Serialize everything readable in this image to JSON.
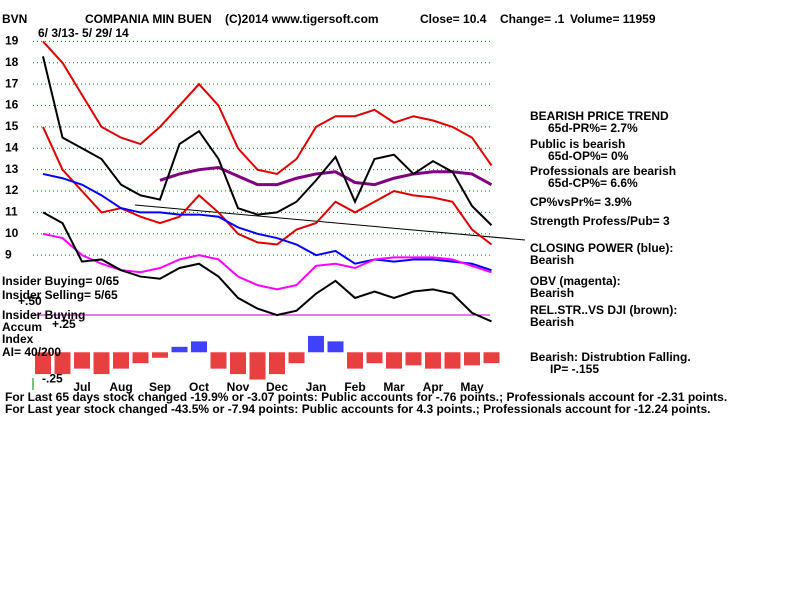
{
  "chart_data": [
    {
      "type": "line",
      "header": [
        "BVN",
        "COMPANIA MIN BUEN",
        "(C)2014 www.tigersoft.com",
        "Close= 10.4",
        "Change= .1",
        "Volume= 11959"
      ],
      "subtitle": "6/ 3/13- 5/ 29/ 14",
      "categories": [
        null,
        null,
        "Jul",
        null,
        "Aug",
        null,
        "Sep",
        null,
        "Oct",
        null,
        "Nov",
        null,
        "Dec",
        null,
        "Jan",
        null,
        "Feb",
        null,
        "Mar",
        null,
        "Apr",
        null,
        "May",
        null
      ],
      "ylim": [
        5.5,
        19.3
      ],
      "yticks": [
        9,
        10,
        11,
        12,
        13,
        14,
        15,
        16,
        17,
        18,
        19
      ],
      "grid": true,
      "series": [
        {
          "color": "#e00000",
          "values": [
            19,
            18,
            16.5,
            15,
            14.5,
            14.2,
            15,
            16,
            17,
            16,
            14,
            13,
            12.8,
            13.5,
            15,
            15.5,
            15.5,
            15.8,
            15.2,
            15.5,
            15.3,
            15,
            14.5,
            13.2
          ]
        },
        {
          "color": "#e00000",
          "values": [
            15,
            13,
            12,
            11,
            11.2,
            10.8,
            10.5,
            10.8,
            11.8,
            11,
            10,
            9.6,
            9.5,
            10.2,
            10.5,
            11.5,
            11,
            11.5,
            12,
            11.8,
            11.7,
            11.5,
            10.2,
            9.5
          ]
        },
        {
          "color": "#800080",
          "values": [
            null,
            null,
            null,
            null,
            null,
            null,
            12.5,
            12.8,
            13,
            13.1,
            12.7,
            12.3,
            12.3,
            12.6,
            12.8,
            12.9,
            12.4,
            12.3,
            12.6,
            12.8,
            12.9,
            12.9,
            12.8,
            12.3
          ]
        },
        {
          "color": "#000000",
          "values": [
            18.3,
            14.5,
            14.0,
            13.5,
            12.3,
            11.8,
            11.6,
            14.2,
            14.8,
            13.5,
            11.2,
            10.9,
            11.0,
            11.5,
            12.5,
            13.6,
            11.5,
            13.5,
            13.7,
            12.8,
            13.4,
            12.9,
            11.3,
            10.4
          ]
        },
        {
          "color": "#0000ff",
          "values": [
            12.8,
            12.6,
            12.3,
            11.8,
            11.2,
            11.0,
            11.0,
            10.9,
            10.9,
            10.8,
            10.3,
            10.0,
            9.8,
            9.5,
            9.0,
            9.2,
            8.6,
            8.8,
            8.7,
            8.8,
            8.8,
            8.7,
            8.6,
            8.3
          ]
        },
        {
          "color": "#ff00ff",
          "values": [
            10.0,
            9.8,
            9.0,
            8.6,
            8.3,
            8.2,
            8.4,
            8.8,
            9.0,
            8.8,
            8.0,
            7.6,
            7.4,
            7.6,
            8.5,
            8.6,
            8.4,
            8.8,
            8.9,
            8.9,
            8.9,
            8.8,
            8.5,
            8.2
          ]
        },
        {
          "color": "#000000",
          "values": [
            11.0,
            10.5,
            8.7,
            8.8,
            8.3,
            8.0,
            7.9,
            8.4,
            8.6,
            8.0,
            7.0,
            6.5,
            6.2,
            6.4,
            7.2,
            7.8,
            7.0,
            7.3,
            7.0,
            7.3,
            7.4,
            7.2,
            6.3,
            5.9
          ]
        }
      ],
      "annotations": [
        "Insider Buying= 0/65",
        "Insider Selling= 5/65",
        "+.50",
        "Insider Buying",
        "Accum",
        "Index",
        "AI= 40/200",
        "BEARISH PRICE TREND",
        "65d-PR%= 2.7%",
        "Public is bearish",
        "65d-OP%= 0%",
        "Professionals are bearish",
        "65d-CP%= 6.6%",
        "CP%vsPr%=  3.9%",
        "Strength Profess/Pub= 3",
        "CLOSING POWER (blue):",
        "Bearish",
        "OBV (magenta):",
        "Bearish",
        "REL.STR..VS DJI (brown):",
        "Bearish",
        "Bearish: Distrubtion Falling.",
        "IP= -.155",
        "For Last 65 days stock changed -19.9% or -3.07 points:  Public accounts for -.76 points.;  Professionals account for -2.31 points.",
        "For Last year stock changed -43.5% or -7.94 points:  Public accounts for  4.3 points.;  Professionals account for -12.24 points."
      ]
    },
    {
      "type": "bar",
      "values": [
        -0.2,
        -0.2,
        -0.15,
        -0.2,
        -0.15,
        -0.1,
        -0.05,
        0.05,
        0.1,
        -0.15,
        -0.2,
        -0.25,
        -0.2,
        -0.1,
        0.15,
        0.1,
        -0.15,
        -0.1,
        -0.15,
        -0.12,
        -0.15,
        -0.15,
        -0.12,
        -0.1
      ],
      "color_positive": "#0000ff",
      "color_negative": "#e00000",
      "ylim": [
        -0.3,
        0.25
      ],
      "yticks": [
        {
          "value": 0.25,
          "label": "+.25"
        },
        {
          "value": -0.25,
          "label": "-.25"
        }
      ]
    }
  ]
}
